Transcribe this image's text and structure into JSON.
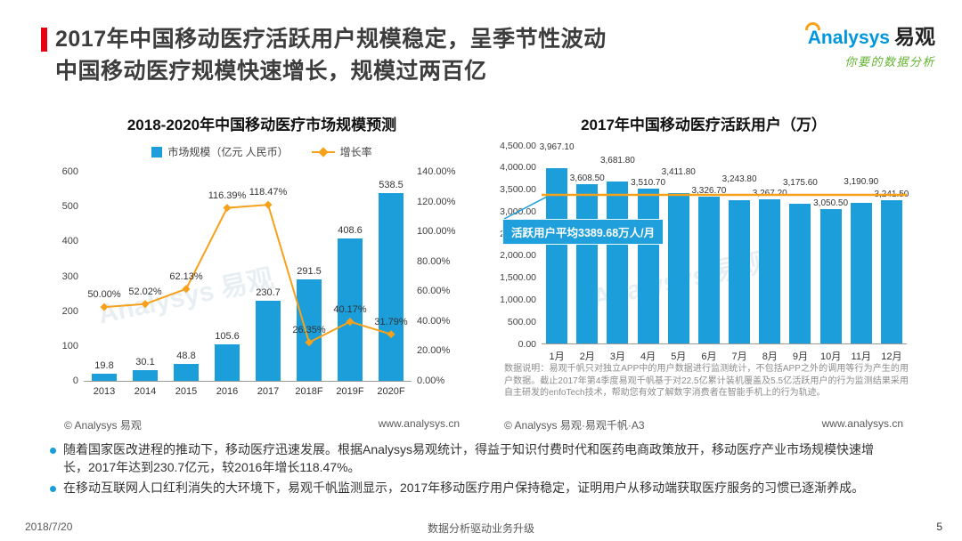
{
  "slide": {
    "date": "2018/7/20",
    "footer_center": "数据分析驱动业务升级",
    "page_number": "5"
  },
  "header": {
    "title_line1": "2017年中国移动医疗活跃用户规模稳定，呈季节性波动",
    "title_line2": "中国移动医疗规模快速增长，规模过两百亿",
    "logo": {
      "brand": "Analysys",
      "brand_cn": "易观",
      "tagline": "你要的数据分析"
    }
  },
  "watermark": "Analysys 易观",
  "colors": {
    "bar_blue": "#1B9ED9",
    "line_orange": "#F7A11A",
    "accent_red": "#E60012",
    "tagline_green": "#62B431"
  },
  "bullets": [
    {
      "text": "随着国家医改进程的推动下，移动医疗迅速发展。根据Analysys易观统计，得益于知识付费时代和医药电商政策放开，移动医疗产业市场规模快速增长，2017年达到230.7亿元，较2016年增长118.47%。"
    },
    {
      "text": "在移动互联网人口红利消失的大环境下，易观千帆监测显示，2017年移动医疗用户保持稳定，证明用户从移动端获取医疗服务的习惯已逐渐养成。"
    }
  ],
  "chart_data": [
    {
      "type": "bar+line",
      "title": "2018-2020年中国移动医疗市场规模预测",
      "categories": [
        "2013",
        "2014",
        "2015",
        "2016",
        "2017",
        "2018F",
        "2019F",
        "2020F"
      ],
      "series": [
        {
          "name": "市场规模（亿元 人民币）",
          "type": "bar",
          "color": "#1B9ED9",
          "values": [
            19.8,
            30.1,
            48.8,
            105.6,
            230.7,
            291.5,
            408.6,
            538.5
          ],
          "labels": [
            "19.8",
            "30.1",
            "48.8",
            "105.6",
            "230.7",
            "291.5",
            "408.6",
            "538.5"
          ]
        },
        {
          "name": "增长率",
          "type": "line",
          "color": "#F7A11A",
          "values": [
            50.0,
            52.02,
            62.13,
            116.39,
            118.47,
            26.35,
            40.17,
            31.79
          ],
          "labels": [
            "50.00%",
            "52.02%",
            "62.13%",
            "116.39%",
            "118.47%",
            "26.35%",
            "40.17%",
            "31.79%"
          ]
        }
      ],
      "left_axis": {
        "min": 0,
        "max": 600,
        "step": 100,
        "tick_labels": [
          "0",
          "100",
          "200",
          "300",
          "400",
          "500",
          "600"
        ]
      },
      "right_axis": {
        "min": 0,
        "max": 140,
        "step": 20,
        "tick_labels": [
          "0.00%",
          "20.00%",
          "40.00%",
          "60.00%",
          "80.00%",
          "100.00%",
          "120.00%",
          "140.00%"
        ]
      },
      "grid": false,
      "legend_position": "top",
      "source_left": "© Analysys 易观",
      "source_right": "www.analysys.cn"
    },
    {
      "type": "bar",
      "title": "2017年中国移动医疗活跃用户（万）",
      "categories": [
        "1月",
        "2月",
        "3月",
        "4月",
        "5月",
        "6月",
        "7月",
        "8月",
        "9月",
        "10月",
        "11月",
        "12月"
      ],
      "values": [
        3967.1,
        3608.5,
        3681.8,
        3510.7,
        3411.8,
        3326.7,
        3243.8,
        3267.2,
        3175.6,
        3050.5,
        3190.9,
        3241.5
      ],
      "labels": [
        "3,967.10",
        "3,608.50",
        "3,681.80",
        "3,510.70",
        "3,411.80",
        "3,326.70",
        "3,243.80",
        "3,267.20",
        "3,175.60",
        "3,050.50",
        "3,190.90",
        "3,241.50"
      ],
      "average": 3389.68,
      "callout": "活跃用户平均3389.68万人/月",
      "y_axis": {
        "min": 0,
        "max": 4500,
        "step": 500,
        "tick_labels": [
          "0.00",
          "500.00",
          "1,000.00",
          "1,500.00",
          "2,000.00",
          "2,500.00",
          "3,000.00",
          "3,500.00",
          "4,000.00",
          "4,500.00"
        ]
      },
      "grid": false,
      "note": "数据说明：易观千帆只对独立APP中的用户数据进行监测统计，不包括APP之外的调用等行为产生的用户数据。截止2017年第4季度易观千帆基于对22.5亿累计装机覆盖及5.5亿活跃用户的行为监测结果采用自主研发的enfoTech技术，帮助您有效了解数字消费者在智能手机上的行为轨迹。",
      "source_left": "© Analysys 易观·易观千帆·A3",
      "source_right": "www.analysys.cn"
    }
  ]
}
